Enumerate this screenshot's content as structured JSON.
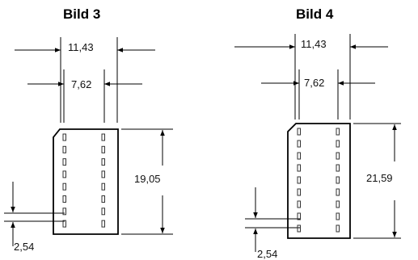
{
  "figures": [
    {
      "title": "Bild 3",
      "dim_outer_width": "11,43",
      "dim_inner_width": "7,62",
      "dim_length": "19,05",
      "dim_pitch": "2,54",
      "pins_per_side": 8
    },
    {
      "title": "Bild 4",
      "dim_outer_width": "11,43",
      "dim_inner_width": "7,62",
      "dim_length": "21,59",
      "dim_pitch": "2,54",
      "pins_per_side": 9
    }
  ]
}
